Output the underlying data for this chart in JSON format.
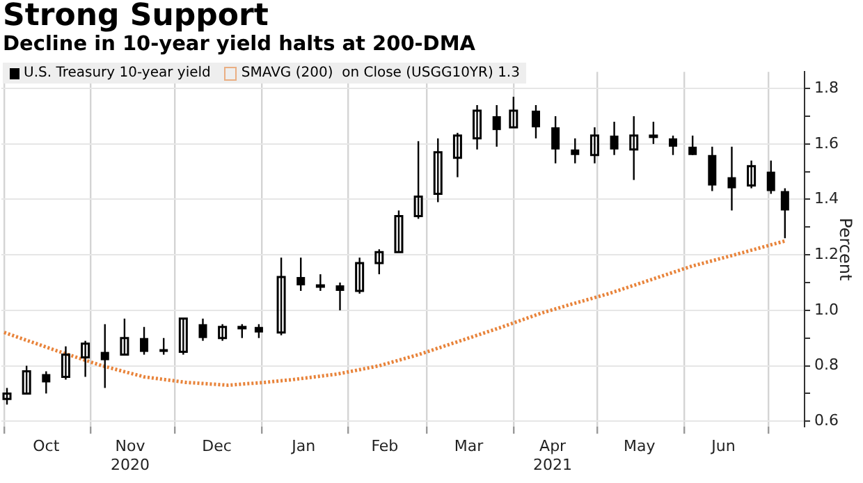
{
  "chart_data": {
    "type": "candlestick",
    "title": "Strong Support",
    "subtitle": "Decline in 10-year yield halts at 200-DMA",
    "ylabel": "Percent",
    "xlim": [
      "2020-09-30",
      "2021-07-14"
    ],
    "xticks": [
      {
        "value": "2020-10-01",
        "label": null
      },
      {
        "value": "2020-10-16",
        "label": "Oct"
      },
      {
        "value": "2020-11-01",
        "label": null
      },
      {
        "value": "2020-11-15",
        "label": "Nov\n2020"
      },
      {
        "value": "2020-12-01",
        "label": null
      },
      {
        "value": "2020-12-16",
        "label": "Dec"
      },
      {
        "value": "2021-01-01",
        "label": null
      },
      {
        "value": "2021-01-16",
        "label": "Jan"
      },
      {
        "value": "2021-02-01",
        "label": null
      },
      {
        "value": "2021-02-14",
        "label": "Feb"
      },
      {
        "value": "2021-03-01",
        "label": null
      },
      {
        "value": "2021-03-16",
        "label": "Mar"
      },
      {
        "value": "2021-04-01",
        "label": null
      },
      {
        "value": "2021-04-15",
        "label": "Apr\n2021"
      },
      {
        "value": "2021-05-01",
        "label": null
      },
      {
        "value": "2021-05-16",
        "label": "May"
      },
      {
        "value": "2021-06-01",
        "label": null
      },
      {
        "value": "2021-06-15",
        "label": "Jun"
      },
      {
        "value": "2021-07-01",
        "label": null
      }
    ],
    "ylim": [
      0.58,
      1.86
    ],
    "yticks": [
      0.6,
      {
        "value": 0.7,
        "label": null
      },
      0.8,
      {
        "value": 0.9,
        "label": null
      },
      {
        "value": 1.0,
        "label": "1.0"
      },
      {
        "value": 1.1,
        "label": null
      },
      1.2,
      {
        "value": 1.3,
        "label": null
      },
      1.4,
      {
        "value": 1.5,
        "label": null
      },
      1.6,
      {
        "value": 1.7,
        "label": null
      },
      1.8
    ],
    "grid": true,
    "legend": "top left",
    "series": [
      {
        "name": "U.S. Treasury 10-year yield",
        "type": "candlestick",
        "color": "#000000",
        "x": [
          "2020-10-02",
          "2020-10-09",
          "2020-10-16",
          "2020-10-23",
          "2020-10-30",
          "2020-11-06",
          "2020-11-13",
          "2020-11-20",
          "2020-11-27",
          "2020-12-04",
          "2020-12-11",
          "2020-12-18",
          "2020-12-25",
          "2020-12-31",
          "2021-01-08",
          "2021-01-15",
          "2021-01-22",
          "2021-01-29",
          "2021-02-05",
          "2021-02-12",
          "2021-02-19",
          "2021-02-26",
          "2021-03-05",
          "2021-03-12",
          "2021-03-19",
          "2021-03-26",
          "2021-04-01",
          "2021-04-09",
          "2021-04-16",
          "2021-04-23",
          "2021-04-30",
          "2021-05-07",
          "2021-05-14",
          "2021-05-21",
          "2021-05-28",
          "2021-06-04",
          "2021-06-11",
          "2021-06-18",
          "2021-06-25",
          "2021-07-02",
          "2021-07-07"
        ],
        "ohlc": [
          [
            0.68,
            0.72,
            0.66,
            0.7
          ],
          [
            0.7,
            0.8,
            0.7,
            0.78
          ],
          [
            0.77,
            0.78,
            0.7,
            0.74
          ],
          [
            0.76,
            0.87,
            0.75,
            0.84
          ],
          [
            0.83,
            0.89,
            0.76,
            0.88
          ],
          [
            0.85,
            0.95,
            0.72,
            0.82
          ],
          [
            0.84,
            0.97,
            0.84,
            0.9
          ],
          [
            0.9,
            0.94,
            0.84,
            0.85
          ],
          [
            0.86,
            0.9,
            0.84,
            0.85
          ],
          [
            0.85,
            0.97,
            0.84,
            0.97
          ],
          [
            0.95,
            0.97,
            0.89,
            0.9
          ],
          [
            0.9,
            0.95,
            0.89,
            0.94
          ],
          [
            0.94,
            0.95,
            0.9,
            0.94
          ],
          [
            0.94,
            0.95,
            0.9,
            0.92
          ],
          [
            0.92,
            1.19,
            0.91,
            1.12
          ],
          [
            1.12,
            1.19,
            1.07,
            1.09
          ],
          [
            1.09,
            1.13,
            1.07,
            1.09
          ],
          [
            1.09,
            1.1,
            1.0,
            1.07
          ],
          [
            1.07,
            1.19,
            1.06,
            1.17
          ],
          [
            1.17,
            1.22,
            1.13,
            1.21
          ],
          [
            1.21,
            1.36,
            1.21,
            1.34
          ],
          [
            1.34,
            1.61,
            1.33,
            1.41
          ],
          [
            1.42,
            1.62,
            1.39,
            1.57
          ],
          [
            1.55,
            1.64,
            1.48,
            1.63
          ],
          [
            1.62,
            1.74,
            1.58,
            1.72
          ],
          [
            1.7,
            1.74,
            1.59,
            1.65
          ],
          [
            1.66,
            1.77,
            1.66,
            1.72
          ],
          [
            1.72,
            1.74,
            1.62,
            1.66
          ],
          [
            1.66,
            1.7,
            1.53,
            1.58
          ],
          [
            1.58,
            1.62,
            1.53,
            1.56
          ],
          [
            1.56,
            1.66,
            1.53,
            1.63
          ],
          [
            1.63,
            1.68,
            1.56,
            1.58
          ],
          [
            1.58,
            1.7,
            1.47,
            1.63
          ],
          [
            1.63,
            1.68,
            1.6,
            1.63
          ],
          [
            1.62,
            1.63,
            1.56,
            1.59
          ],
          [
            1.59,
            1.63,
            1.56,
            1.56
          ],
          [
            1.56,
            1.59,
            1.43,
            1.45
          ],
          [
            1.48,
            1.59,
            1.36,
            1.44
          ],
          [
            1.45,
            1.54,
            1.44,
            1.52
          ],
          [
            1.5,
            1.54,
            1.42,
            1.43
          ],
          [
            1.43,
            1.44,
            1.26,
            1.36
          ]
        ]
      },
      {
        "name": "SMAVG (200)  on Close (USGG10YR) 1.3",
        "type": "line",
        "color": "#e8833a",
        "line_style": "dotted",
        "marker": "none",
        "x": [
          "2020-10-01",
          "2020-10-21",
          "2020-11-05",
          "2020-11-20",
          "2020-12-05",
          "2020-12-20",
          "2021-01-02",
          "2021-01-12",
          "2021-01-28",
          "2021-02-12",
          "2021-02-26",
          "2021-03-13",
          "2021-03-28",
          "2021-04-11",
          "2021-04-21",
          "2021-05-05",
          "2021-05-20",
          "2021-06-04",
          "2021-06-19",
          "2021-07-07"
        ],
        "values": [
          0.92,
          0.85,
          0.8,
          0.76,
          0.74,
          0.73,
          0.74,
          0.75,
          0.77,
          0.8,
          0.84,
          0.89,
          0.94,
          0.99,
          1.02,
          1.06,
          1.11,
          1.16,
          1.2,
          1.25
        ]
      }
    ]
  }
}
